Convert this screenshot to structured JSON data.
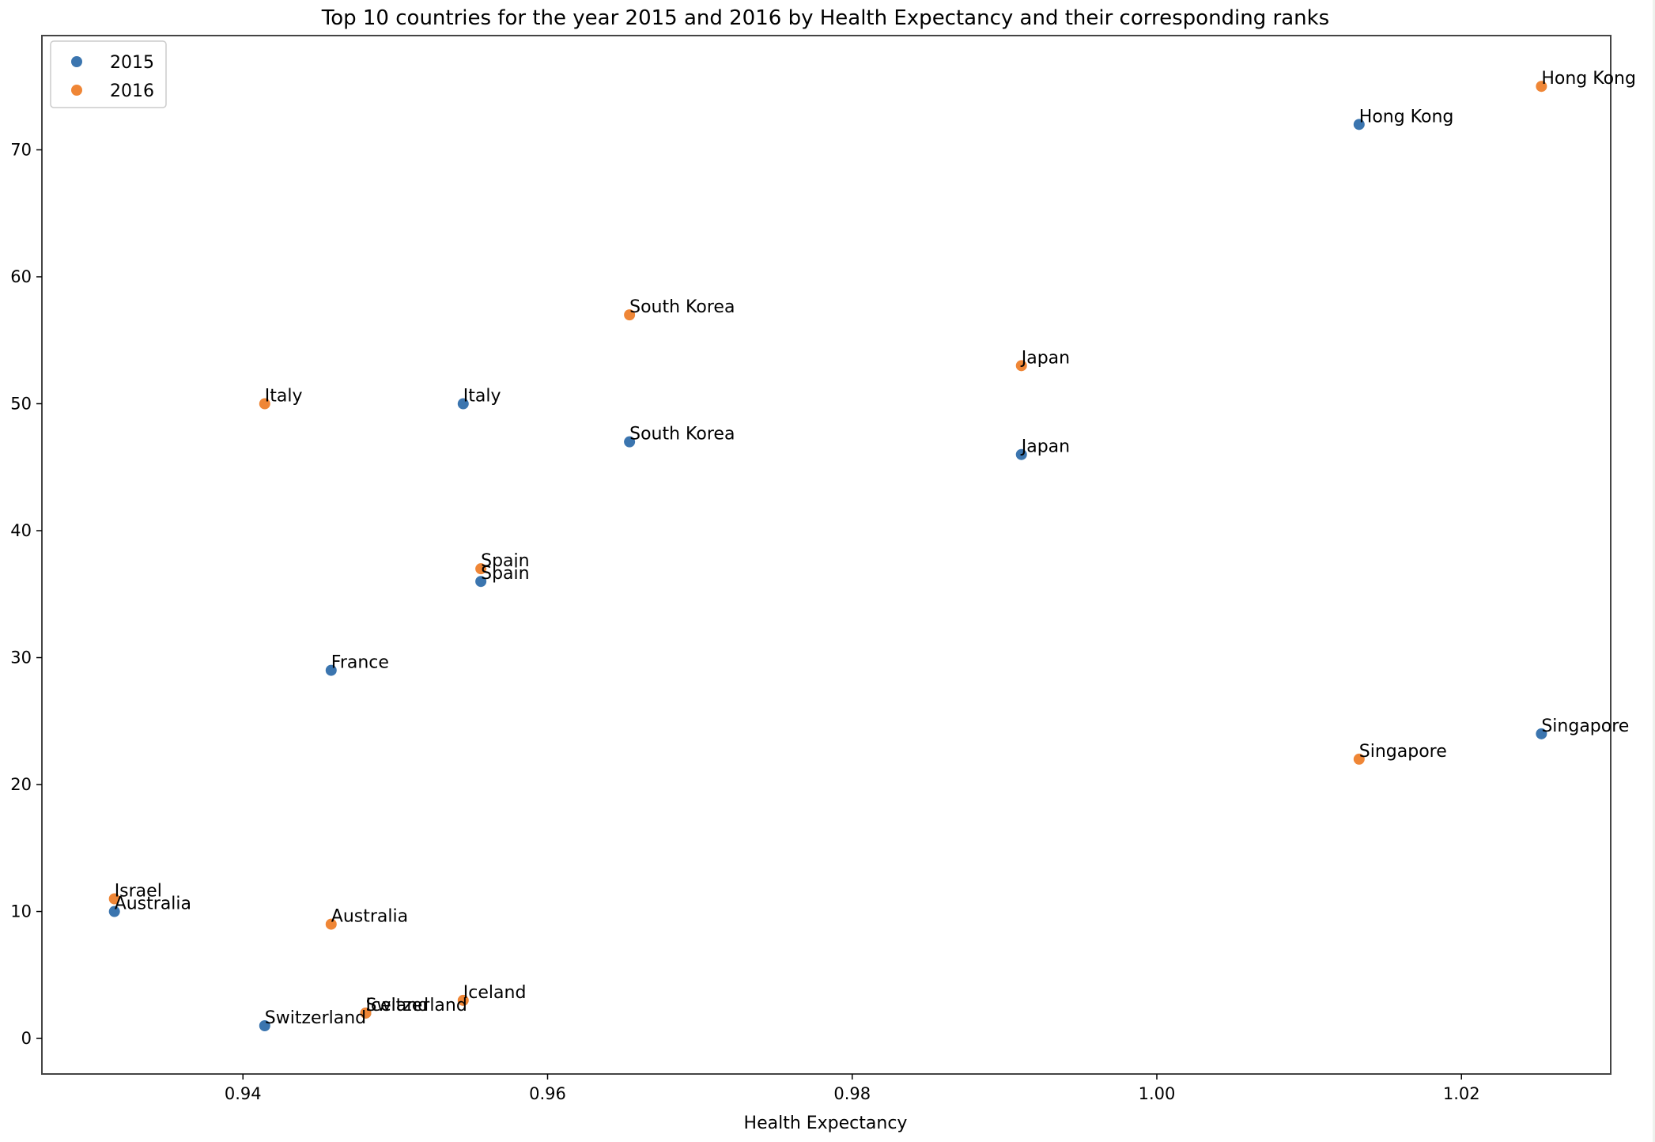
{
  "chart_data": {
    "type": "scatter",
    "title": "Top 10 countries for the year 2015 and 2016 by Health Expectancy and their corresponding ranks",
    "xlabel": "Health Expectancy",
    "ylabel": "",
    "xlim": [
      0.9268,
      1.0298
    ],
    "ylim": [
      -2.8,
      79.0
    ],
    "xticks": [
      0.94,
      0.96,
      0.98,
      1.0,
      1.02
    ],
    "xtick_labels": [
      "0.94",
      "0.96",
      "0.98",
      "1.00",
      "1.02"
    ],
    "yticks": [
      0,
      10,
      20,
      30,
      40,
      50,
      60,
      70
    ],
    "ytick_labels": [
      "0",
      "10",
      "20",
      "30",
      "40",
      "50",
      "60",
      "70"
    ],
    "legend_position": "top-left",
    "series": [
      {
        "name": "2015",
        "color": "#3b75af",
        "points": [
          {
            "label": "Singapore",
            "x": 1.02525,
            "y": 24
          },
          {
            "label": "Hong Kong",
            "x": 1.01328,
            "y": 72
          },
          {
            "label": "Japan",
            "x": 0.99111,
            "y": 46
          },
          {
            "label": "South Korea",
            "x": 0.96538,
            "y": 47
          },
          {
            "label": "Spain",
            "x": 0.95562,
            "y": 36
          },
          {
            "label": "Italy",
            "x": 0.95446,
            "y": 50
          },
          {
            "label": "France",
            "x": 0.94579,
            "y": 29
          },
          {
            "label": "Switzerland",
            "x": 0.94143,
            "y": 1
          },
          {
            "label": "Australia",
            "x": 0.93156,
            "y": 10
          },
          {
            "label": "Iceland",
            "x": 0.94806,
            "y": 2
          }
        ]
      },
      {
        "name": "2016",
        "color": "#ef8636",
        "points": [
          {
            "label": "Hong Kong",
            "x": 1.02525,
            "y": 75
          },
          {
            "label": "Singapore",
            "x": 1.01328,
            "y": 22
          },
          {
            "label": "Japan",
            "x": 0.99111,
            "y": 53
          },
          {
            "label": "South Korea",
            "x": 0.96538,
            "y": 57
          },
          {
            "label": "Spain",
            "x": 0.95562,
            "y": 37
          },
          {
            "label": "Iceland",
            "x": 0.95446,
            "y": 3
          },
          {
            "label": "Switzerland",
            "x": 0.94806,
            "y": 2
          },
          {
            "label": "Australia",
            "x": 0.94579,
            "y": 9
          },
          {
            "label": "Italy",
            "x": 0.94143,
            "y": 50
          },
          {
            "label": "Israel",
            "x": 0.93156,
            "y": 11
          }
        ]
      }
    ]
  }
}
